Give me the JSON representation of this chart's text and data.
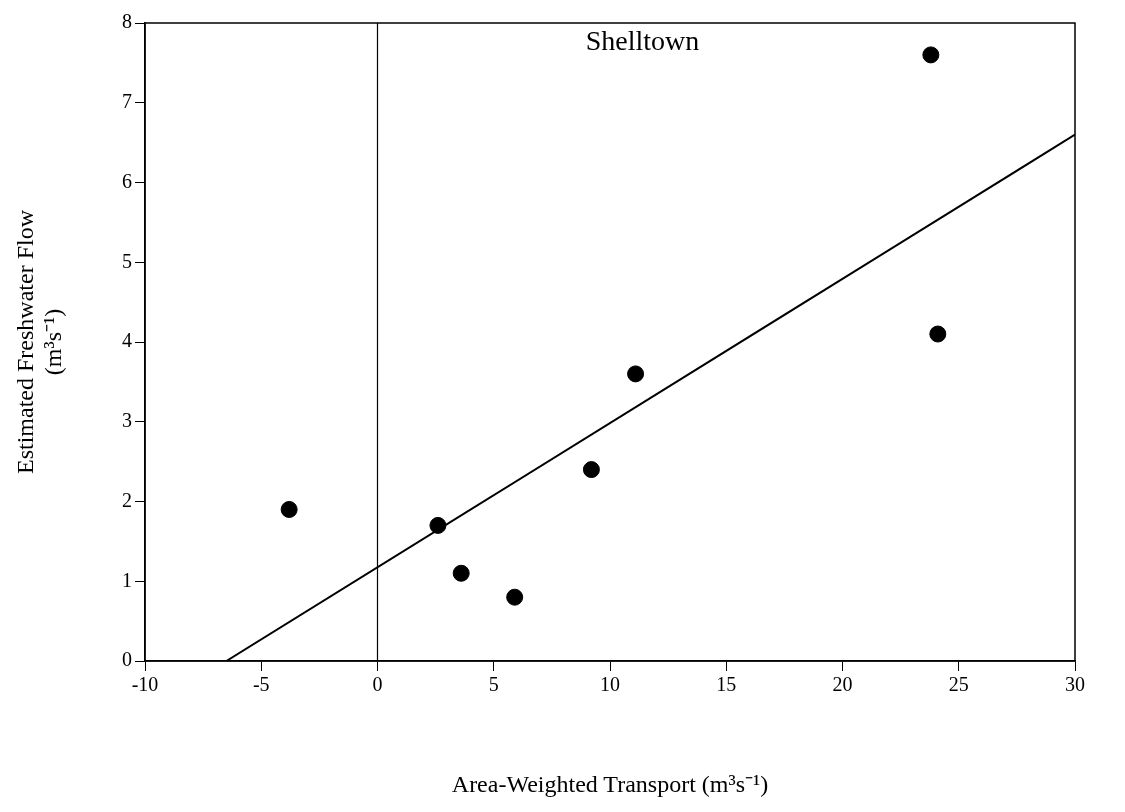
{
  "chart_data": {
    "type": "scatter",
    "title": "Shelltown",
    "xlabel": "Area-Weighted Transport (m³s⁻¹)",
    "ylabel": "Estimated Freshwater Flow\n(m³s⁻¹)",
    "xlim": [
      -10,
      30
    ],
    "xticks": [
      -10,
      -5,
      0,
      5,
      10,
      15,
      20,
      25,
      30
    ],
    "ylim": [
      0,
      8
    ],
    "yticks": [
      0,
      1,
      2,
      3,
      4,
      5,
      6,
      7,
      8
    ],
    "grid": false,
    "legend": false,
    "marker": "circle",
    "series": [
      {
        "type": "scatter",
        "color": "#000000",
        "x": [
          -3.8,
          2.6,
          3.6,
          5.9,
          9.2,
          11.1,
          23.8,
          24.1
        ],
        "values": [
          1.9,
          1.7,
          1.1,
          0.8,
          2.4,
          3.6,
          7.6,
          4.1
        ]
      },
      {
        "type": "line",
        "color": "#000000",
        "x": [
          -6.5,
          30
        ],
        "values": [
          0,
          6.6
        ],
        "line_style": "solid",
        "marker": "none"
      }
    ],
    "ref_lines": [
      {
        "axis": "x",
        "value": 0,
        "color": "#000000"
      }
    ]
  }
}
